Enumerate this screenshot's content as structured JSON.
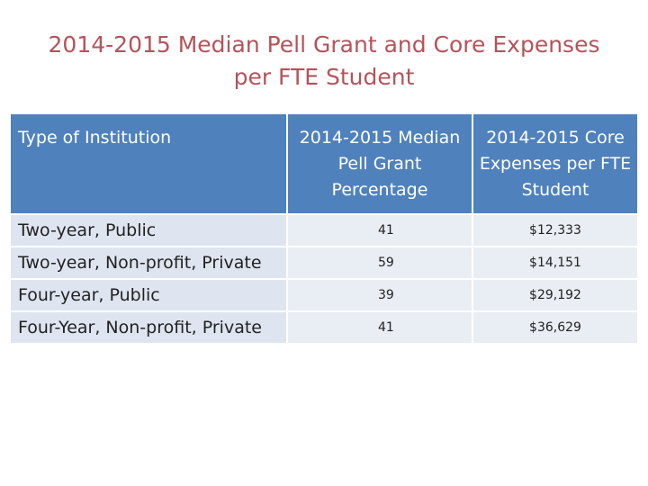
{
  "title": {
    "line1": "2014-2015 Median Pell Grant and Core Expenses",
    "line2": "per FTE Student"
  },
  "table": {
    "headers": [
      "Type of Institution",
      "2014-2015 Median Pell Grant Percentage",
      "2014-2015 Core Expenses per FTE Student"
    ],
    "rows": [
      {
        "type": "Two-year, Public",
        "pell": "41",
        "expenses": "$12,333"
      },
      {
        "type": "Two-year, Non-profit, Private",
        "pell": "59",
        "expenses": "$14,151"
      },
      {
        "type": "Four-year, Public",
        "pell": "39",
        "expenses": "$29,192"
      },
      {
        "type": "Four-Year, Non-profit, Private",
        "pell": "41",
        "expenses": "$36,629"
      }
    ]
  },
  "colors": {
    "title": "#b5535a",
    "header_background": "#4f81bd",
    "label_background": "#dfe5f0",
    "value_background": "#e9edf4"
  }
}
